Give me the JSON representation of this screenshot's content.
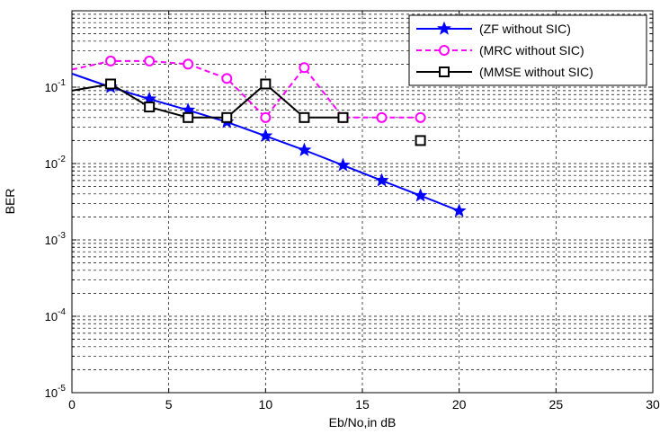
{
  "chart_data": {
    "type": "line",
    "title": "",
    "xlabel": "Eb/No,in dB",
    "ylabel": "BER",
    "xlim": [
      0,
      30
    ],
    "ylim": [
      1e-05,
      1
    ],
    "yscale": "log",
    "grid": true,
    "grid_style": "dashed",
    "legend_position": "top-right",
    "x_ticks": [
      0,
      5,
      10,
      15,
      20,
      25,
      30
    ],
    "y_ticks": [
      {
        "base": "10",
        "exp": "-5",
        "value": 1e-05
      },
      {
        "base": "10",
        "exp": "-4",
        "value": 0.0001
      },
      {
        "base": "10",
        "exp": "-3",
        "value": 0.001
      },
      {
        "base": "10",
        "exp": "-2",
        "value": 0.01
      },
      {
        "base": "10",
        "exp": "-1",
        "value": 0.1
      }
    ],
    "series": [
      {
        "name": "(ZF without SIC)",
        "color": "#0000ff",
        "line_style": "solid",
        "marker": "star",
        "x": [
          2,
          4,
          6,
          8,
          10,
          12,
          14,
          16,
          18,
          20
        ],
        "y": [
          0.1,
          0.07,
          0.05,
          0.035,
          0.023,
          0.015,
          0.0095,
          0.006,
          0.0038,
          0.0024
        ],
        "line_from_origin": 0.15
      },
      {
        "name": "(MRC without SIC)",
        "color": "#ff00ff",
        "line_style": "dashed",
        "marker": "circle",
        "x": [
          2,
          4,
          6,
          8,
          10,
          12,
          14,
          16,
          18
        ],
        "y": [
          0.22,
          0.22,
          0.2,
          0.13,
          0.04,
          0.18,
          0.04,
          0.04,
          0.04
        ],
        "line_from_origin": 0.17
      },
      {
        "name": "(MMSE without SIC)",
        "color": "#000000",
        "line_style": "solid",
        "marker": "square",
        "x": [
          2,
          4,
          6,
          8,
          10,
          12,
          14,
          18
        ],
        "y": [
          0.11,
          0.055,
          0.04,
          0.04,
          0.11,
          0.04,
          0.04,
          0.02
        ],
        "line_from_origin": 0.09,
        "connected_through_index": 6
      }
    ]
  }
}
